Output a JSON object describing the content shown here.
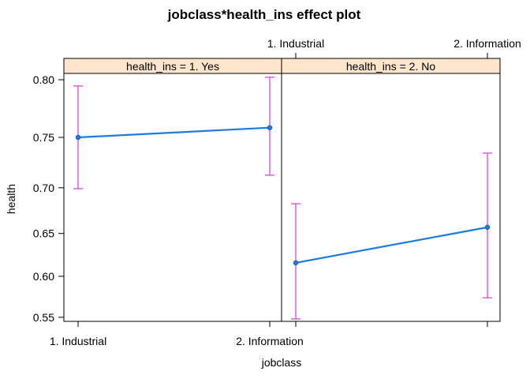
{
  "chart_data": {
    "type": "line",
    "title": "jobclass*health_ins effect plot",
    "xlabel": "jobclass",
    "ylabel": "health",
    "categories": [
      "1. Industrial",
      "2. Information"
    ],
    "yticks": [
      "0.55",
      "0.60",
      "0.65",
      "0.70",
      "0.75",
      "0.80"
    ],
    "ytick_values": [
      0.55,
      0.6,
      0.65,
      0.7,
      0.75,
      0.8
    ],
    "y_scale": "logit",
    "ylim": [
      0.545,
      0.805
    ],
    "panels": [
      {
        "strip": "health_ins = 1. Yes",
        "fit": [
          0.75,
          0.759
        ],
        "lower": [
          0.699,
          0.713
        ],
        "upper": [
          0.795,
          0.802
        ]
      },
      {
        "strip": "health_ins = 2. No",
        "fit": [
          0.616,
          0.657
        ],
        "lower": [
          0.548,
          0.574
        ],
        "upper": [
          0.683,
          0.735
        ]
      }
    ],
    "colors": {
      "line": "#1E7BE0",
      "ci": "#D63AD6"
    },
    "grid": false
  }
}
